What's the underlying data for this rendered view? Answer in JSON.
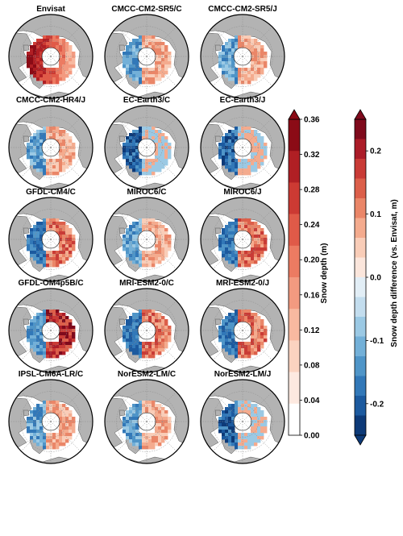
{
  "panels": [
    {
      "title": "Envisat",
      "mode": "depth",
      "pattern": "strong"
    },
    {
      "title": "CMCC-CM2-SR5/C",
      "mode": "diff",
      "pattern": "mild"
    },
    {
      "title": "CMCC-CM2-SR5/J",
      "mode": "diff",
      "pattern": "mild"
    },
    {
      "title": "CMCC-CM2-HR4/J",
      "mode": "diff",
      "pattern": "mild"
    },
    {
      "title": "EC-Earth3/C",
      "mode": "diff",
      "pattern": "cool"
    },
    {
      "title": "EC-Earth3/J",
      "mode": "diff",
      "pattern": "cool"
    },
    {
      "title": "GFDL-CM4/C",
      "mode": "diff",
      "pattern": "warm"
    },
    {
      "title": "MIROC6/C",
      "mode": "diff",
      "pattern": "mild"
    },
    {
      "title": "MIROC6/J",
      "mode": "diff",
      "pattern": "warm"
    },
    {
      "title": "GFDL-OM4p5B/C",
      "mode": "diff",
      "pattern": "hot"
    },
    {
      "title": "MRI-ESM2-0/C",
      "mode": "diff",
      "pattern": "warm"
    },
    {
      "title": "MRI-ESM2-0/J",
      "mode": "diff",
      "pattern": "warm"
    },
    {
      "title": "IPSL-CM6A-LR/C",
      "mode": "diff",
      "pattern": "mild"
    },
    {
      "title": "NorESM2-LM/C",
      "mode": "diff",
      "pattern": "mild"
    },
    {
      "title": "NorESM2-LM/J",
      "mode": "diff",
      "pattern": "cool"
    }
  ],
  "colorbar_depth": {
    "label": "Snow depth (m)",
    "ticks": [
      "0.36",
      "0.32",
      "0.28",
      "0.24",
      "0.20",
      "0.16",
      "0.12",
      "0.08",
      "0.04",
      "0.00"
    ],
    "min": 0.0,
    "max": 0.36,
    "extend": "max",
    "colors": [
      "#ffffff",
      "#fde9e0",
      "#fbd3c0",
      "#f8b9a0",
      "#f39a80",
      "#ec7b62",
      "#e05a48",
      "#cc3a33",
      "#b01f24",
      "#8b0b16"
    ]
  },
  "colorbar_diff": {
    "label": "Snow depth difference (vs. Envisat, m)",
    "ticks": [
      "0.2",
      "0.1",
      "0.0",
      "-0.1",
      "-0.2"
    ],
    "min": -0.25,
    "max": 0.25,
    "extend": "both",
    "colors": [
      "#0d3a78",
      "#1c5a9f",
      "#3278b8",
      "#4f95c8",
      "#73b0d8",
      "#9bc9e4",
      "#c3ddee",
      "#e2eef6",
      "#fbe6dc",
      "#f9cdb8",
      "#f4ab8e",
      "#ea8668",
      "#dc5f4a",
      "#c93b36",
      "#ab1c28",
      "#7f0a1c"
    ]
  },
  "colors": {
    "ocean": "#ffffff",
    "land": "#b3b3b3",
    "coast": "#555555",
    "grid": "#8c8c8c",
    "outline": "#000000"
  }
}
